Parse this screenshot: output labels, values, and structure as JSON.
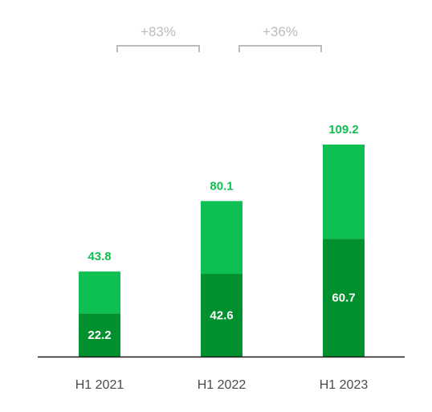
{
  "chart_data": {
    "type": "bar",
    "stacked": true,
    "categories": [
      "H1 2021",
      "H1 2022",
      "H1 2023"
    ],
    "series": [
      {
        "values": [
          22.2,
          42.6,
          60.7
        ],
        "color": "#00902e"
      },
      {
        "values": [
          21.6,
          37.5,
          48.5
        ],
        "color": "#0ebf51"
      }
    ],
    "totals": [
      43.8,
      80.1,
      109.2
    ],
    "inner_labels": [
      22.2,
      42.6,
      60.7
    ],
    "total_label_color": "#0ebf51",
    "growth_annotations": [
      {
        "label": "+83%",
        "from": "H1 2021",
        "to": "H1 2022"
      },
      {
        "label": "+36%",
        "from": "H1 2022",
        "to": "H1 2023"
      }
    ],
    "annotation_color": "#b9bcc0",
    "baseline_color": "#1a1a1a",
    "ylim": [
      0,
      109.2
    ],
    "grid": false,
    "legend": "none",
    "title": "",
    "xlabel": "",
    "ylabel": ""
  }
}
